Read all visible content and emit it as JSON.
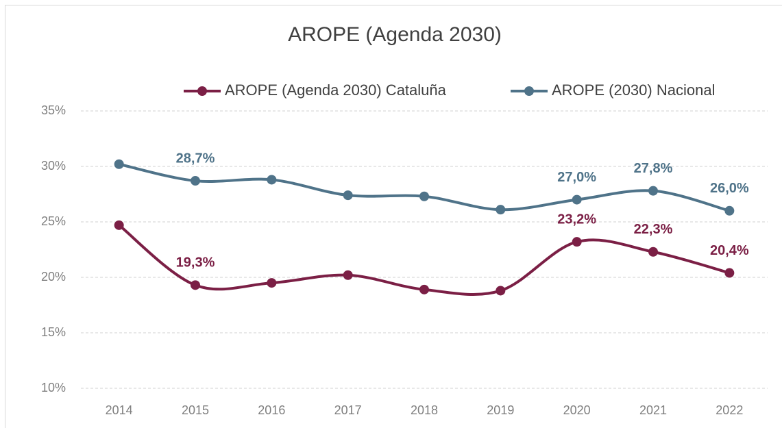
{
  "chart_data": {
    "type": "line",
    "title": "AROPE (Agenda 2030)",
    "categories": [
      "2014",
      "2015",
      "2016",
      "2017",
      "2018",
      "2019",
      "2020",
      "2021",
      "2022"
    ],
    "series": [
      {
        "name": "AROPE (Agenda 2030) Cataluña",
        "color": "#7b1f45",
        "values": [
          24.7,
          19.3,
          19.5,
          20.2,
          18.9,
          18.8,
          23.2,
          22.3,
          20.4
        ],
        "value_labels": [
          null,
          "19,3%",
          null,
          null,
          null,
          null,
          "23,2%",
          "22,3%",
          "20,4%"
        ]
      },
      {
        "name": "AROPE (2030) Nacional",
        "color": "#4f7389",
        "values": [
          30.2,
          28.7,
          28.8,
          27.4,
          27.3,
          26.1,
          27.0,
          27.8,
          26.0
        ],
        "value_labels": [
          null,
          "28,7%",
          null,
          null,
          null,
          null,
          "27,0%",
          "27,8%",
          "26,0%"
        ]
      }
    ],
    "ylim": [
      10,
      35
    ],
    "yticks": [
      {
        "value": 10,
        "label": "10%"
      },
      {
        "value": 15,
        "label": "15%"
      },
      {
        "value": 20,
        "label": "20%"
      },
      {
        "value": 25,
        "label": "25%"
      },
      {
        "value": 30,
        "label": "30%"
      },
      {
        "value": 35,
        "label": "35%"
      }
    ],
    "grid": true,
    "legend": "top"
  }
}
